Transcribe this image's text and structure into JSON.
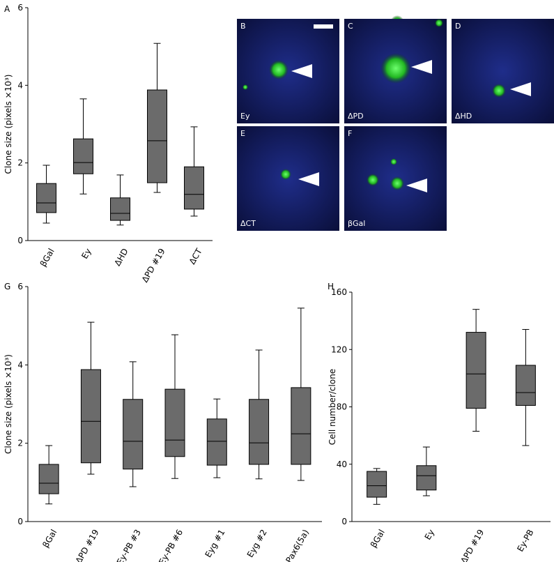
{
  "chart_data": [
    {
      "type": "box",
      "panel": "A",
      "y_label": "Clone size (pixels ×10³)",
      "categories": [
        "βGal",
        "Ey",
        "ΔHD",
        "ΔPD #19",
        "ΔCT"
      ],
      "boxes": [
        {
          "min": 0.45,
          "q1": 0.72,
          "median": 0.97,
          "q3": 1.47,
          "max": 1.94
        },
        {
          "min": 1.2,
          "q1": 1.72,
          "median": 2.01,
          "q3": 2.62,
          "max": 3.65
        },
        {
          "min": 0.4,
          "q1": 0.52,
          "median": 0.7,
          "q3": 1.1,
          "max": 1.69
        },
        {
          "min": 1.24,
          "q1": 1.49,
          "median": 2.57,
          "q3": 3.88,
          "max": 5.08
        },
        {
          "min": 0.63,
          "q1": 0.81,
          "median": 1.19,
          "q3": 1.9,
          "max": 2.93
        }
      ],
      "color": "#6b6b6b",
      "ylim": [
        0,
        6
      ],
      "yticks": [
        0,
        2,
        4,
        6
      ]
    },
    {
      "type": "box",
      "panel": "G",
      "y_label": "Clone size (pixels ×10³)",
      "categories": [
        "βGal",
        "ΔPD #19",
        "Ey-PB #3",
        "Ey-PB #6",
        "Eyg #1",
        "Eyg #2",
        "Pax6(5a)"
      ],
      "boxes": [
        {
          "min": 0.45,
          "q1": 0.71,
          "median": 0.98,
          "q3": 1.46,
          "max": 1.94
        },
        {
          "min": 1.21,
          "q1": 1.5,
          "median": 2.56,
          "q3": 3.88,
          "max": 5.09
        },
        {
          "min": 0.89,
          "q1": 1.34,
          "median": 2.05,
          "q3": 3.12,
          "max": 4.08
        },
        {
          "min": 1.1,
          "q1": 1.66,
          "median": 2.08,
          "q3": 3.38,
          "max": 4.77
        },
        {
          "min": 1.12,
          "q1": 1.44,
          "median": 2.05,
          "q3": 2.62,
          "max": 3.13
        },
        {
          "min": 1.09,
          "q1": 1.46,
          "median": 2.01,
          "q3": 3.12,
          "max": 4.38
        },
        {
          "min": 1.05,
          "q1": 1.46,
          "median": 2.24,
          "q3": 3.42,
          "max": 5.45
        }
      ],
      "color": "#6b6b6b",
      "ylim": [
        0,
        6
      ],
      "yticks": [
        0,
        2,
        4,
        6
      ]
    },
    {
      "type": "box",
      "panel": "H",
      "y_label": "Cell number/clone",
      "categories": [
        "βGal",
        "Ey",
        "ΔPD #19",
        "Ey-PB"
      ],
      "boxes": [
        {
          "min": 12,
          "q1": 17,
          "median": 25,
          "q3": 35,
          "max": 37
        },
        {
          "min": 18,
          "q1": 22,
          "median": 32,
          "q3": 39,
          "max": 52
        },
        {
          "min": 63,
          "q1": 79,
          "median": 103,
          "q3": 132,
          "max": 148
        },
        {
          "min": 53,
          "q1": 81,
          "median": 90,
          "q3": 109,
          "max": 134
        }
      ],
      "color": "#6b6b6b",
      "ylim": [
        0,
        160
      ],
      "yticks": [
        0,
        40,
        80,
        120,
        160
      ]
    }
  ],
  "image_panels": [
    {
      "letter": "B",
      "label": "Ey"
    },
    {
      "letter": "C",
      "label": "ΔPD"
    },
    {
      "letter": "D",
      "label": "ΔHD"
    },
    {
      "letter": "E",
      "label": "ΔCT"
    },
    {
      "letter": "F",
      "label": "βGal"
    }
  ]
}
